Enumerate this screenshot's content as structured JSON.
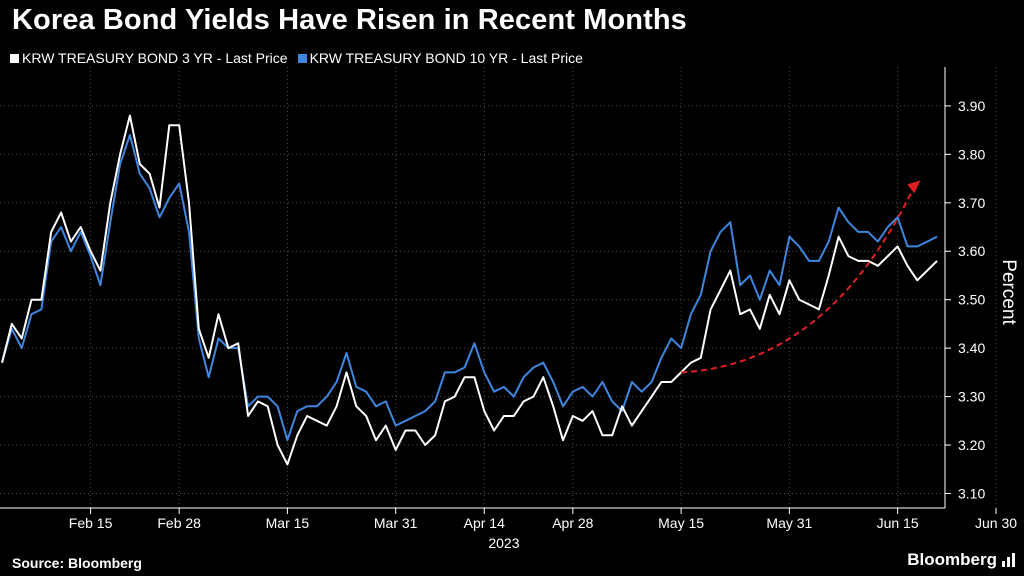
{
  "title": "Korea Bond Yields Have Risen in Recent Months",
  "source": "Source: Bloomberg",
  "logo": "Bloomberg",
  "colors": {
    "background": "#000000",
    "series_3yr": "#ffffff",
    "series_10yr": "#3f86e0",
    "arrow": "#e02020",
    "grid": "#4a4a4a",
    "axis_text": "#ffffff"
  },
  "chart_data": {
    "type": "line",
    "title": "Korea Bond Yields Have Risen in Recent Months",
    "xlabel": "2023",
    "ylabel": "Percent",
    "ylim": [
      3.07,
      3.97
    ],
    "x_tick_labels": [
      "Feb 15",
      "Feb 28",
      "Mar 15",
      "Mar 31",
      "Apr 14",
      "Apr 28",
      "May 15",
      "May 31",
      "Jun 15",
      "Jun 30"
    ],
    "x_tick_positions": [
      9,
      18,
      29,
      40,
      49,
      58,
      69,
      80,
      91,
      101
    ],
    "y_ticks": [
      3.1,
      3.2,
      3.3,
      3.4,
      3.5,
      3.6,
      3.7,
      3.8,
      3.9
    ],
    "y_tick_labels": [
      "3.10",
      "3.20",
      "3.30",
      "3.40",
      "3.50",
      "3.60",
      "3.70",
      "3.80",
      "3.90"
    ],
    "legend_position": "top-left",
    "annotation": "red dashed upward arrow across May-June",
    "annotation_arrow": [
      [
        3.35,
        69
      ],
      [
        3.74,
        93
      ]
    ],
    "series": [
      {
        "name": "KRW TREASURY BOND 3 YR - Last Price",
        "values": [
          3.37,
          3.45,
          3.42,
          3.5,
          3.5,
          3.64,
          3.68,
          3.62,
          3.65,
          3.6,
          3.56,
          3.7,
          3.8,
          3.88,
          3.78,
          3.76,
          3.69,
          3.86,
          3.86,
          3.7,
          3.44,
          3.38,
          3.47,
          3.4,
          3.41,
          3.26,
          3.29,
          3.28,
          3.2,
          3.16,
          3.22,
          3.26,
          3.25,
          3.24,
          3.28,
          3.35,
          3.28,
          3.26,
          3.21,
          3.24,
          3.19,
          3.23,
          3.23,
          3.2,
          3.22,
          3.29,
          3.3,
          3.34,
          3.34,
          3.27,
          3.23,
          3.26,
          3.26,
          3.29,
          3.3,
          3.34,
          3.28,
          3.21,
          3.26,
          3.25,
          3.27,
          3.22,
          3.22,
          3.28,
          3.24,
          3.27,
          3.3,
          3.33,
          3.33,
          3.35,
          3.37,
          3.38,
          3.48,
          3.52,
          3.56,
          3.47,
          3.48,
          3.44,
          3.51,
          3.47,
          3.54,
          3.5,
          3.49,
          3.48,
          3.55,
          3.63,
          3.59,
          3.58,
          3.58,
          3.57,
          3.59,
          3.61,
          3.57,
          3.54,
          3.56,
          3.58
        ]
      },
      {
        "name": "KRW TREASURY BOND 10 YR - Last Price",
        "values": [
          3.37,
          3.44,
          3.4,
          3.47,
          3.48,
          3.62,
          3.65,
          3.6,
          3.64,
          3.59,
          3.53,
          3.66,
          3.78,
          3.84,
          3.76,
          3.73,
          3.67,
          3.71,
          3.74,
          3.64,
          3.42,
          3.34,
          3.42,
          3.4,
          3.4,
          3.28,
          3.3,
          3.3,
          3.28,
          3.21,
          3.27,
          3.28,
          3.28,
          3.3,
          3.33,
          3.39,
          3.32,
          3.31,
          3.28,
          3.29,
          3.24,
          3.25,
          3.26,
          3.27,
          3.29,
          3.35,
          3.35,
          3.36,
          3.41,
          3.35,
          3.31,
          3.32,
          3.3,
          3.34,
          3.36,
          3.37,
          3.33,
          3.28,
          3.31,
          3.32,
          3.3,
          3.33,
          3.29,
          3.27,
          3.33,
          3.31,
          3.33,
          3.38,
          3.42,
          3.4,
          3.47,
          3.51,
          3.6,
          3.64,
          3.66,
          3.53,
          3.55,
          3.5,
          3.56,
          3.53,
          3.63,
          3.61,
          3.58,
          3.58,
          3.62,
          3.69,
          3.66,
          3.64,
          3.64,
          3.62,
          3.65,
          3.67,
          3.61,
          3.61,
          3.62,
          3.63
        ]
      }
    ]
  }
}
